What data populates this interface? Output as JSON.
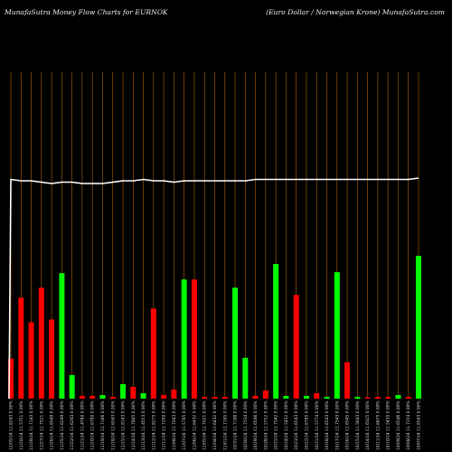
{
  "header": {
    "left": "MunafaSutra  Money Flow  Charts for EURNOK",
    "right": "(Euro  Dollar / Norwegian  Krone) MunafaSutra.com"
  },
  "colors": {
    "background": "#000000",
    "up": "#00ff00",
    "down": "#ff0000",
    "grid": "#b8650a",
    "line": "#ffffff"
  },
  "chart_data": {
    "type": "bar",
    "title": "MunafaSutra  Money Flow  Charts for EURNOK",
    "subtitle": "(Euro  Dollar / Norwegian  Krone) MunafaSutra.com",
    "ylim": [
      0,
      160
    ],
    "grid": "vertical",
    "categories": [
      "12/05/24 11.6243 0.00%",
      "11/20/24 11.5751 0.00%",
      "11/28/24 11.7143 0.00%",
      "11/27/24 11.7521 0.00%",
      "11/26/24 11.6549 0.00%",
      "11/25/24 11.6249 0.00%",
      "11/22/24 11.6243 0.00%",
      "11/21/24 11.4780 0.00%",
      "11/20/24 11.6780 0.00%",
      "11/19/24 11.7166 0.00%",
      "11/18/24 11.6543 0.00%",
      "11/15/24 11.8143 0.00%",
      "11/14/24 11.7845 0.00%",
      "11/13/24 11.4553 0.00%",
      "11/12/24 11.8275 0.00%",
      "11/11/24 11.7200 0.00%",
      "11/08/24 11.7043 0.00%",
      "11/07/24 11.5785 0.00%",
      "11/06/24 11.6432 0.00%",
      "11/05/24 11.7021 0.00%",
      "11/04/24 11.6432 0.00%",
      "11/01/24 11.7185 0.00%",
      "10/31/24 11.7188 0.00%",
      "10/30/24 11.7534 0.00%",
      "10/29/24 11.6546 0.00%",
      "10/28/24 11.5752 0.00%",
      "10/25/24 11.7542 0.00%",
      "10/24/24 11.5432 0.00%",
      "10/23/24 11.6543 0.00%",
      "10/22/24 11.6785 0.00%",
      "10/21/24 11.5774 0.00%",
      "10/18/24 11.6543 0.00%",
      "10/17/24 11.7543 0.00%",
      "10/16/24 11.6545 0.00%",
      "10/15/24 11.5643 0.00%",
      "10/14/24 11.6325 0.00%",
      "10/11/24 11.6675 0.00%",
      "10/10/24 11.5435 0.00%",
      "10/09/24 11.6546 0.00%",
      "10/08/24 11.7154 0.00%",
      "10/07/24 11.6543 0.00%"
    ],
    "series": [
      {
        "values": [
          44,
          111,
          84,
          122,
          87,
          138,
          26,
          3,
          3,
          4,
          2,
          16,
          13,
          6,
          99,
          4,
          10,
          131,
          131,
          2,
          2,
          2,
          122,
          45,
          3,
          9,
          148,
          3,
          114,
          3,
          6,
          2,
          139,
          40,
          2,
          1,
          2,
          2,
          4,
          2,
          157
        ],
        "colors": [
          "r",
          "r",
          "r",
          "r",
          "r",
          "g",
          "g",
          "r",
          "r",
          "g",
          "r",
          "g",
          "r",
          "g",
          "r",
          "r",
          "r",
          "g",
          "r",
          "r",
          "r",
          "r",
          "g",
          "g",
          "r",
          "r",
          "g",
          "g",
          "r",
          "g",
          "r",
          "g",
          "g",
          "r",
          "g",
          "r",
          "r",
          "r",
          "g",
          "r",
          "g"
        ]
      },
      {
        "type": "line",
        "values": [
          129,
          128,
          128,
          127,
          126,
          127,
          127,
          126,
          126,
          126,
          127,
          128,
          128,
          129,
          128,
          128,
          127,
          128,
          128,
          128,
          128,
          128,
          128,
          128,
          129,
          129,
          129,
          129,
          129,
          129,
          129,
          129,
          129,
          129,
          129,
          129,
          129,
          129,
          129,
          129,
          130
        ],
        "start": 0
      }
    ]
  }
}
